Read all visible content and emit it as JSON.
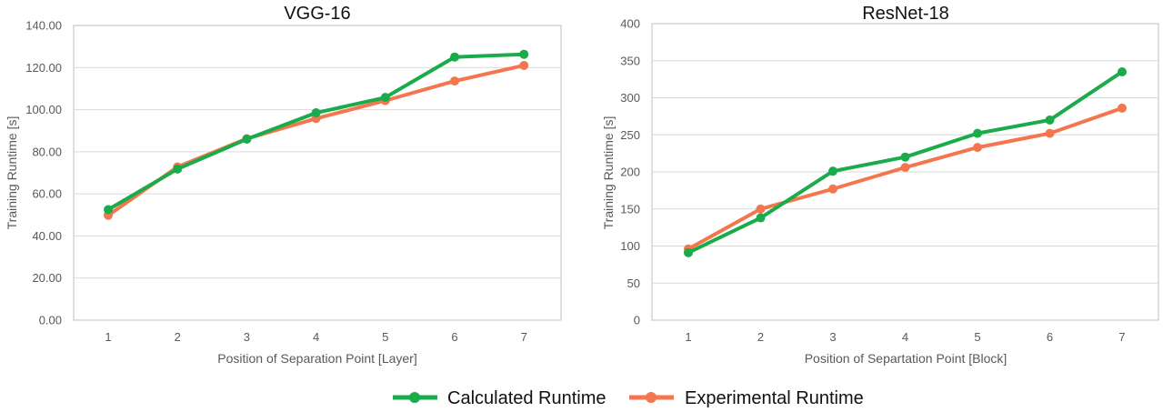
{
  "colors": {
    "calculated": "#1aab4b",
    "experimental": "#f4764f"
  },
  "legend": {
    "calculated_label": "Calculated Runtime",
    "experimental_label": "Experimental Runtime"
  },
  "chart_data": [
    {
      "type": "line",
      "title": "VGG-16",
      "xlabel": "Position of Separation Point [Layer]",
      "ylabel": "Training Runtime [s]",
      "categories": [
        "1",
        "2",
        "3",
        "4",
        "5",
        "6",
        "7"
      ],
      "ylim": [
        0,
        140
      ],
      "yticks": [
        "0.00",
        "20.00",
        "40.00",
        "60.00",
        "80.00",
        "100.00",
        "120.00",
        "140.00"
      ],
      "grid": true,
      "legend_position": "bottom",
      "series": [
        {
          "name": "Calculated Runtime",
          "values": [
            52.5,
            71.8,
            86.0,
            98.5,
            105.8,
            125.0,
            126.3
          ]
        },
        {
          "name": "Experimental Runtime",
          "values": [
            49.8,
            72.8,
            86.2,
            95.8,
            104.3,
            113.6,
            121.0
          ]
        }
      ]
    },
    {
      "type": "line",
      "title": "ResNet-18",
      "xlabel": "Position of Separtation Point [Block]",
      "ylabel": "Training Runtime [s]",
      "categories": [
        "1",
        "2",
        "3",
        "4",
        "5",
        "6",
        "7"
      ],
      "ylim": [
        0,
        400
      ],
      "yticks": [
        "0",
        "50",
        "100",
        "150",
        "200",
        "250",
        "300",
        "350",
        "400"
      ],
      "grid": true,
      "legend_position": "bottom",
      "series": [
        {
          "name": "Calculated Runtime",
          "values": [
            91,
            138,
            201,
            220,
            252,
            270,
            335
          ]
        },
        {
          "name": "Experimental Runtime",
          "values": [
            96,
            150,
            177,
            206,
            233,
            252,
            286
          ]
        }
      ]
    }
  ]
}
